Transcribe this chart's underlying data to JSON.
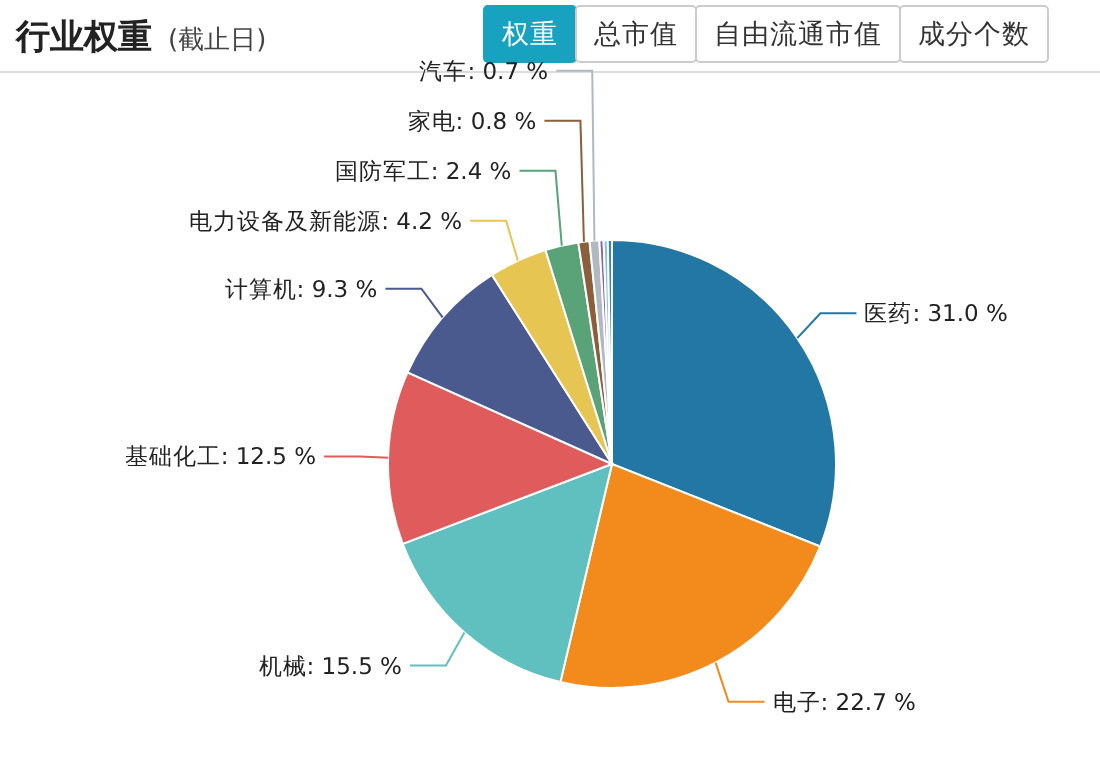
{
  "chart_data": {
    "type": "pie",
    "title": "行业权重",
    "subtitle": "(截止日)",
    "annotations": [
      "权重",
      "总市值",
      "自由流通市值",
      "成分个数"
    ],
    "categories": [
      "医药",
      "电子",
      "机械",
      "基础化工",
      "计算机",
      "电力设备及新能源",
      "国防军工",
      "家电",
      "汽车",
      null,
      null,
      null
    ],
    "values": [
      31.0,
      22.7,
      15.5,
      12.5,
      9.3,
      4.2,
      2.4,
      0.8,
      0.7,
      0.3,
      0.3,
      0.3
    ],
    "value_labels": [
      "31.0 %",
      "22.7 %",
      "15.5 %",
      "12.5 %",
      "9.3 %",
      "4.2 %",
      "2.4 %",
      "0.8 %",
      "0.7 %",
      null,
      null,
      null
    ],
    "colors": [
      "#2277a4",
      "#f28b1c",
      "#60bfbf",
      "#e05c5c",
      "#4a5a8f",
      "#e6c552",
      "#5aa278",
      "#8b5e3c",
      "#b0b8c0",
      "#8e5fb8",
      "#7ec8e3",
      "#3a7dc9"
    ]
  }
}
